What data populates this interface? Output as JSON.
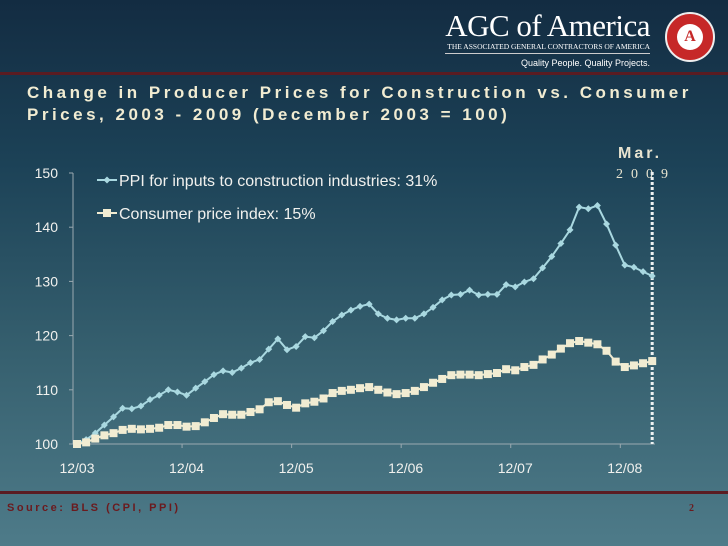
{
  "logo": {
    "name": "AGC of America",
    "subtitle": "THE ASSOCIATED GENERAL CONTRACTORS OF AMERICA",
    "tagline": "Quality People. Quality Projects.",
    "seal_text": "AGC"
  },
  "title": "Change in Producer Prices for Construction vs. Consumer Prices, 2003 - 2009 (December 2003 = 100)",
  "annotation": {
    "month": "Mar.",
    "year": "2009"
  },
  "footer": {
    "source": "Source: BLS (CPI, PPI)",
    "page": "2"
  },
  "colors": {
    "ppi": "#a9d8e0",
    "cpi": "#f1ecd2",
    "accent": "#6b1a1e"
  },
  "chart_data": {
    "type": "line",
    "title": "Change in Producer Prices for Construction vs. Consumer Prices, 2003 - 2009 (December 2003 = 100)",
    "x_start": "12/03",
    "x_end": "03/09",
    "x_frequency": "monthly",
    "xtick_labels": [
      "12/03",
      "12/04",
      "12/05",
      "12/06",
      "12/07",
      "12/08"
    ],
    "ylim": [
      100,
      150
    ],
    "yticks": [
      100,
      110,
      120,
      130,
      140,
      150
    ],
    "grid": false,
    "legend": "top-left",
    "series": [
      {
        "name": "PPI for inputs to construction industries: 31%",
        "marker": "diamond",
        "values": [
          100,
          100.8,
          102,
          103.5,
          105,
          106.6,
          106.5,
          107,
          108.2,
          109,
          110,
          109.6,
          109,
          110.3,
          111.5,
          112.8,
          113.5,
          113.2,
          114,
          115,
          115.6,
          117.5,
          119.4,
          117.4,
          118,
          119.8,
          119.6,
          120.9,
          122.6,
          123.8,
          124.7,
          125.4,
          125.8,
          124,
          123.2,
          122.9,
          123.2,
          123.2,
          124,
          125.2,
          126.6,
          127.5,
          127.6,
          128.4,
          127.5,
          127.6,
          127.6,
          129.4,
          129,
          129.9,
          130.5,
          132.5,
          134.6,
          137,
          139.5,
          143.7,
          143.4,
          144,
          140.6,
          136.7,
          133,
          132.6,
          131.8,
          131
        ]
      },
      {
        "name": "Consumer price index:  15%",
        "marker": "square",
        "values": [
          100,
          100.3,
          101,
          101.6,
          102,
          102.6,
          102.8,
          102.7,
          102.8,
          103,
          103.5,
          103.5,
          103.2,
          103.3,
          104,
          104.8,
          105.5,
          105.4,
          105.4,
          105.9,
          106.4,
          107.7,
          107.9,
          107.2,
          106.7,
          107.5,
          107.8,
          108.4,
          109.4,
          109.8,
          110,
          110.3,
          110.5,
          110,
          109.5,
          109.2,
          109.4,
          109.8,
          110.5,
          111.3,
          112,
          112.7,
          112.8,
          112.8,
          112.7,
          112.9,
          113.1,
          113.8,
          113.6,
          114.2,
          114.6,
          115.6,
          116.5,
          117.6,
          118.6,
          119,
          118.7,
          118.4,
          117.2,
          115.2,
          114.2,
          114.5,
          114.9,
          115.3
        ]
      }
    ]
  }
}
